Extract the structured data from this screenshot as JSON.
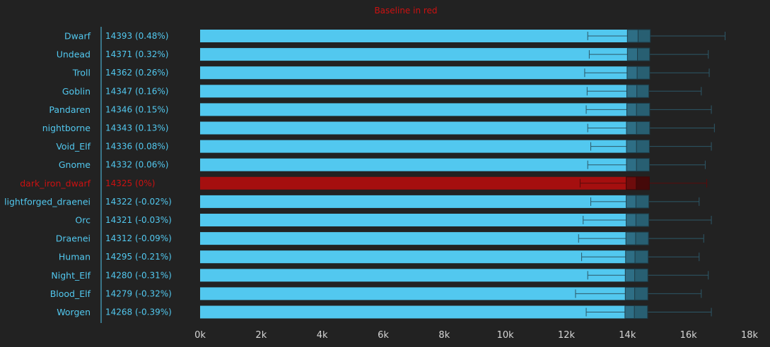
{
  "chart_data": {
    "type": "bar",
    "subtitle": "Baseline in red",
    "baseline_category": "dark_iron_dwarf",
    "xlim": [
      0,
      18000
    ],
    "x_ticks": [
      {
        "value": 0,
        "label": "0k"
      },
      {
        "value": 2000,
        "label": "2k"
      },
      {
        "value": 4000,
        "label": "4k"
      },
      {
        "value": 6000,
        "label": "6k"
      },
      {
        "value": 8000,
        "label": "8k"
      },
      {
        "value": 10000,
        "label": "10k"
      },
      {
        "value": 12000,
        "label": "12k"
      },
      {
        "value": 14000,
        "label": "14k"
      },
      {
        "value": 16000,
        "label": "16k"
      },
      {
        "value": 18000,
        "label": "18k"
      }
    ],
    "grid": false,
    "colors": {
      "bar": "#52c8ef",
      "baseline_bar": "#a50f0f",
      "label": "#52c8ef",
      "baseline_label": "#cc1111",
      "box_fill": "#2e6e85",
      "box_stroke": "#1d3c48",
      "whisker": "#2d5868",
      "axis_text": "#d6d6d6",
      "background": "#222222"
    },
    "rows": [
      {
        "category": "Dwarf",
        "value_label": "14393 (0.48%)",
        "value": 14393,
        "whisker_low": 12700,
        "q1": 14000,
        "median": 14350,
        "q3": 14750,
        "whisker_high": 17200
      },
      {
        "category": "Undead",
        "value_label": "14371 (0.32%)",
        "value": 14371,
        "whisker_low": 12750,
        "q1": 14000,
        "median": 14330,
        "q3": 14730,
        "whisker_high": 16650
      },
      {
        "category": "Troll",
        "value_label": "14362 (0.26%)",
        "value": 14362,
        "whisker_low": 12600,
        "q1": 13990,
        "median": 14320,
        "q3": 14730,
        "whisker_high": 16680
      },
      {
        "category": "Goblin",
        "value_label": "14347 (0.16%)",
        "value": 14347,
        "whisker_low": 12680,
        "q1": 13980,
        "median": 14310,
        "q3": 14700,
        "whisker_high": 16420
      },
      {
        "category": "Pandaren",
        "value_label": "14346 (0.15%)",
        "value": 14346,
        "whisker_low": 12650,
        "q1": 13980,
        "median": 14300,
        "q3": 14730,
        "whisker_high": 16750
      },
      {
        "category": "nightborne",
        "value_label": "14343 (0.13%)",
        "value": 14343,
        "whisker_low": 12700,
        "q1": 13970,
        "median": 14300,
        "q3": 14730,
        "whisker_high": 16850
      },
      {
        "category": "Void_Elf",
        "value_label": "14336 (0.08%)",
        "value": 14336,
        "whisker_low": 12800,
        "q1": 13970,
        "median": 14300,
        "q3": 14720,
        "whisker_high": 16750
      },
      {
        "category": "Gnome",
        "value_label": "14332 (0.06%)",
        "value": 14332,
        "whisker_low": 12700,
        "q1": 13970,
        "median": 14300,
        "q3": 14720,
        "whisker_high": 16550
      },
      {
        "category": "dark_iron_dwarf",
        "value_label": "14325 (0%)",
        "value": 14325,
        "whisker_low": 12450,
        "q1": 13960,
        "median": 14290,
        "q3": 14720,
        "whisker_high": 16600
      },
      {
        "category": "lightforged_draenei",
        "value_label": "14322 (-0.02%)",
        "value": 14322,
        "whisker_low": 12800,
        "q1": 13960,
        "median": 14280,
        "q3": 14700,
        "whisker_high": 16350
      },
      {
        "category": "Orc",
        "value_label": "14321 (-0.03%)",
        "value": 14321,
        "whisker_low": 12550,
        "q1": 13960,
        "median": 14280,
        "q3": 14700,
        "whisker_high": 16750
      },
      {
        "category": "Draenei",
        "value_label": "14312 (-0.09%)",
        "value": 14312,
        "whisker_low": 12400,
        "q1": 13950,
        "median": 14270,
        "q3": 14690,
        "whisker_high": 16500
      },
      {
        "category": "Human",
        "value_label": "14295 (-0.21%)",
        "value": 14295,
        "whisker_low": 12500,
        "q1": 13940,
        "median": 14250,
        "q3": 14680,
        "whisker_high": 16350
      },
      {
        "category": "Night_Elf",
        "value_label": "14280 (-0.31%)",
        "value": 14280,
        "whisker_low": 12700,
        "q1": 13930,
        "median": 14240,
        "q3": 14670,
        "whisker_high": 16650
      },
      {
        "category": "Blood_Elf",
        "value_label": "14279 (-0.32%)",
        "value": 14279,
        "whisker_low": 12300,
        "q1": 13930,
        "median": 14240,
        "q3": 14670,
        "whisker_high": 16420
      },
      {
        "category": "Worgen",
        "value_label": "14268 (-0.39%)",
        "value": 14268,
        "whisker_low": 12650,
        "q1": 13920,
        "median": 14230,
        "q3": 14660,
        "whisker_high": 16750
      }
    ]
  }
}
